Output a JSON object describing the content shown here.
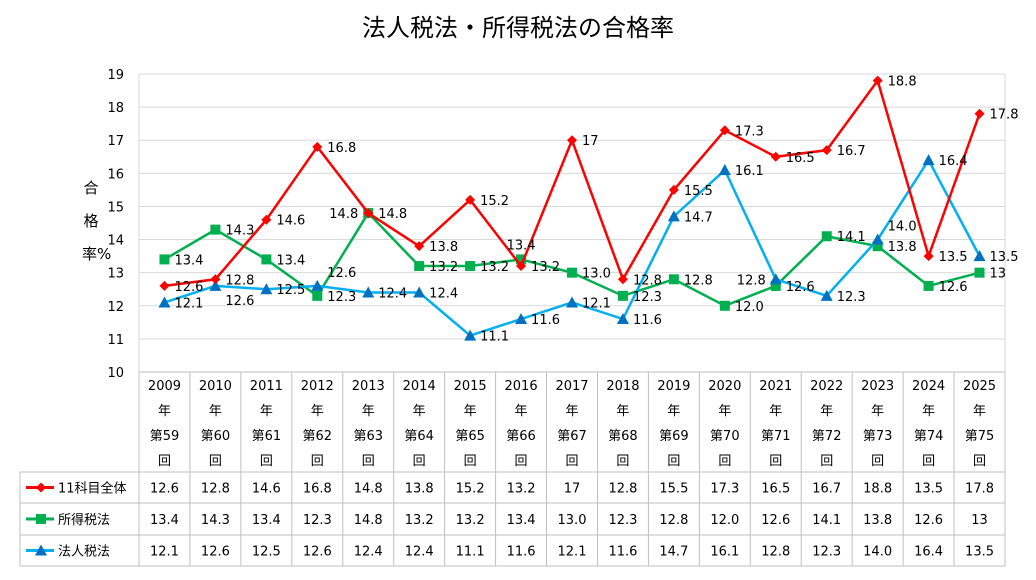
{
  "chart_data": {
    "type": "line",
    "title": "法人税法・所得税法の合格率",
    "ylabel": "合格率%",
    "ylim": [
      10,
      19
    ],
    "yticks": [
      10,
      11,
      12,
      13,
      14,
      15,
      16,
      17,
      18,
      19
    ],
    "grid": true,
    "legend": "data-table",
    "categories": [
      [
        "2009",
        "年",
        "第59",
        "回"
      ],
      [
        "2010",
        "年",
        "第60",
        "回"
      ],
      [
        "2011",
        "年",
        "第61",
        "回"
      ],
      [
        "2012",
        "年",
        "第62",
        "回"
      ],
      [
        "2013",
        "年",
        "第63",
        "回"
      ],
      [
        "2014",
        "年",
        "第64",
        "回"
      ],
      [
        "2015",
        "年",
        "第65",
        "回"
      ],
      [
        "2016",
        "年",
        "第66",
        "回"
      ],
      [
        "2017",
        "年",
        "第67",
        "回"
      ],
      [
        "2018",
        "年",
        "第68",
        "回"
      ],
      [
        "2019",
        "年",
        "第69",
        "回"
      ],
      [
        "2020",
        "年",
        "第70",
        "回"
      ],
      [
        "2021",
        "年",
        "第71",
        "回"
      ],
      [
        "2022",
        "年",
        "第72",
        "回"
      ],
      [
        "2023",
        "年",
        "第73",
        "回"
      ],
      [
        "2024",
        "年",
        "第74",
        "回"
      ],
      [
        "2025",
        "年",
        "第75",
        "回"
      ]
    ],
    "series": [
      {
        "name": "11科目全体",
        "color": "#ff0000",
        "marker": "diamond",
        "values": [
          12.6,
          12.8,
          14.6,
          16.8,
          14.8,
          13.8,
          15.2,
          13.2,
          17,
          12.8,
          15.5,
          17.3,
          16.5,
          16.7,
          18.8,
          13.5,
          17.8
        ],
        "labels": [
          "12.6",
          "12.8",
          "14.6",
          "16.8",
          "14.8",
          "13.8",
          "15.2",
          "13.2",
          "17",
          "12.8",
          "15.5",
          "17.3",
          "16.5",
          "16.7",
          "18.8",
          "13.5",
          "17.8"
        ]
      },
      {
        "name": "所得税法",
        "color": "#00b050",
        "marker": "square",
        "values": [
          13.4,
          14.3,
          13.4,
          12.3,
          14.8,
          13.2,
          13.2,
          13.4,
          13.0,
          12.3,
          12.8,
          12.0,
          12.6,
          14.1,
          13.8,
          12.6,
          13
        ],
        "labels": [
          "13.4",
          "14.3",
          "13.4",
          "12.3",
          "14.8",
          "13.2",
          "13.2",
          "13.4",
          "13.0",
          "12.3",
          "12.8",
          "12.0",
          "12.6",
          "14.1",
          "13.8",
          "12.6",
          "13"
        ]
      },
      {
        "name": "法人税法",
        "color": "#00b0f0",
        "marker_color": "#0070c0",
        "marker": "triangle",
        "values": [
          12.1,
          12.6,
          12.5,
          12.6,
          12.4,
          12.4,
          11.1,
          11.6,
          12.1,
          11.6,
          14.7,
          16.1,
          12.8,
          12.3,
          14.0,
          16.4,
          13.5
        ],
        "labels": [
          "12.1",
          "12.6",
          "12.5",
          "12.6",
          "12.4",
          "12.4",
          "11.1",
          "11.6",
          "12.1",
          "11.6",
          "14.7",
          "16.1",
          "12.8",
          "12.3",
          "14.0",
          "16.4",
          "13.5"
        ]
      }
    ]
  }
}
